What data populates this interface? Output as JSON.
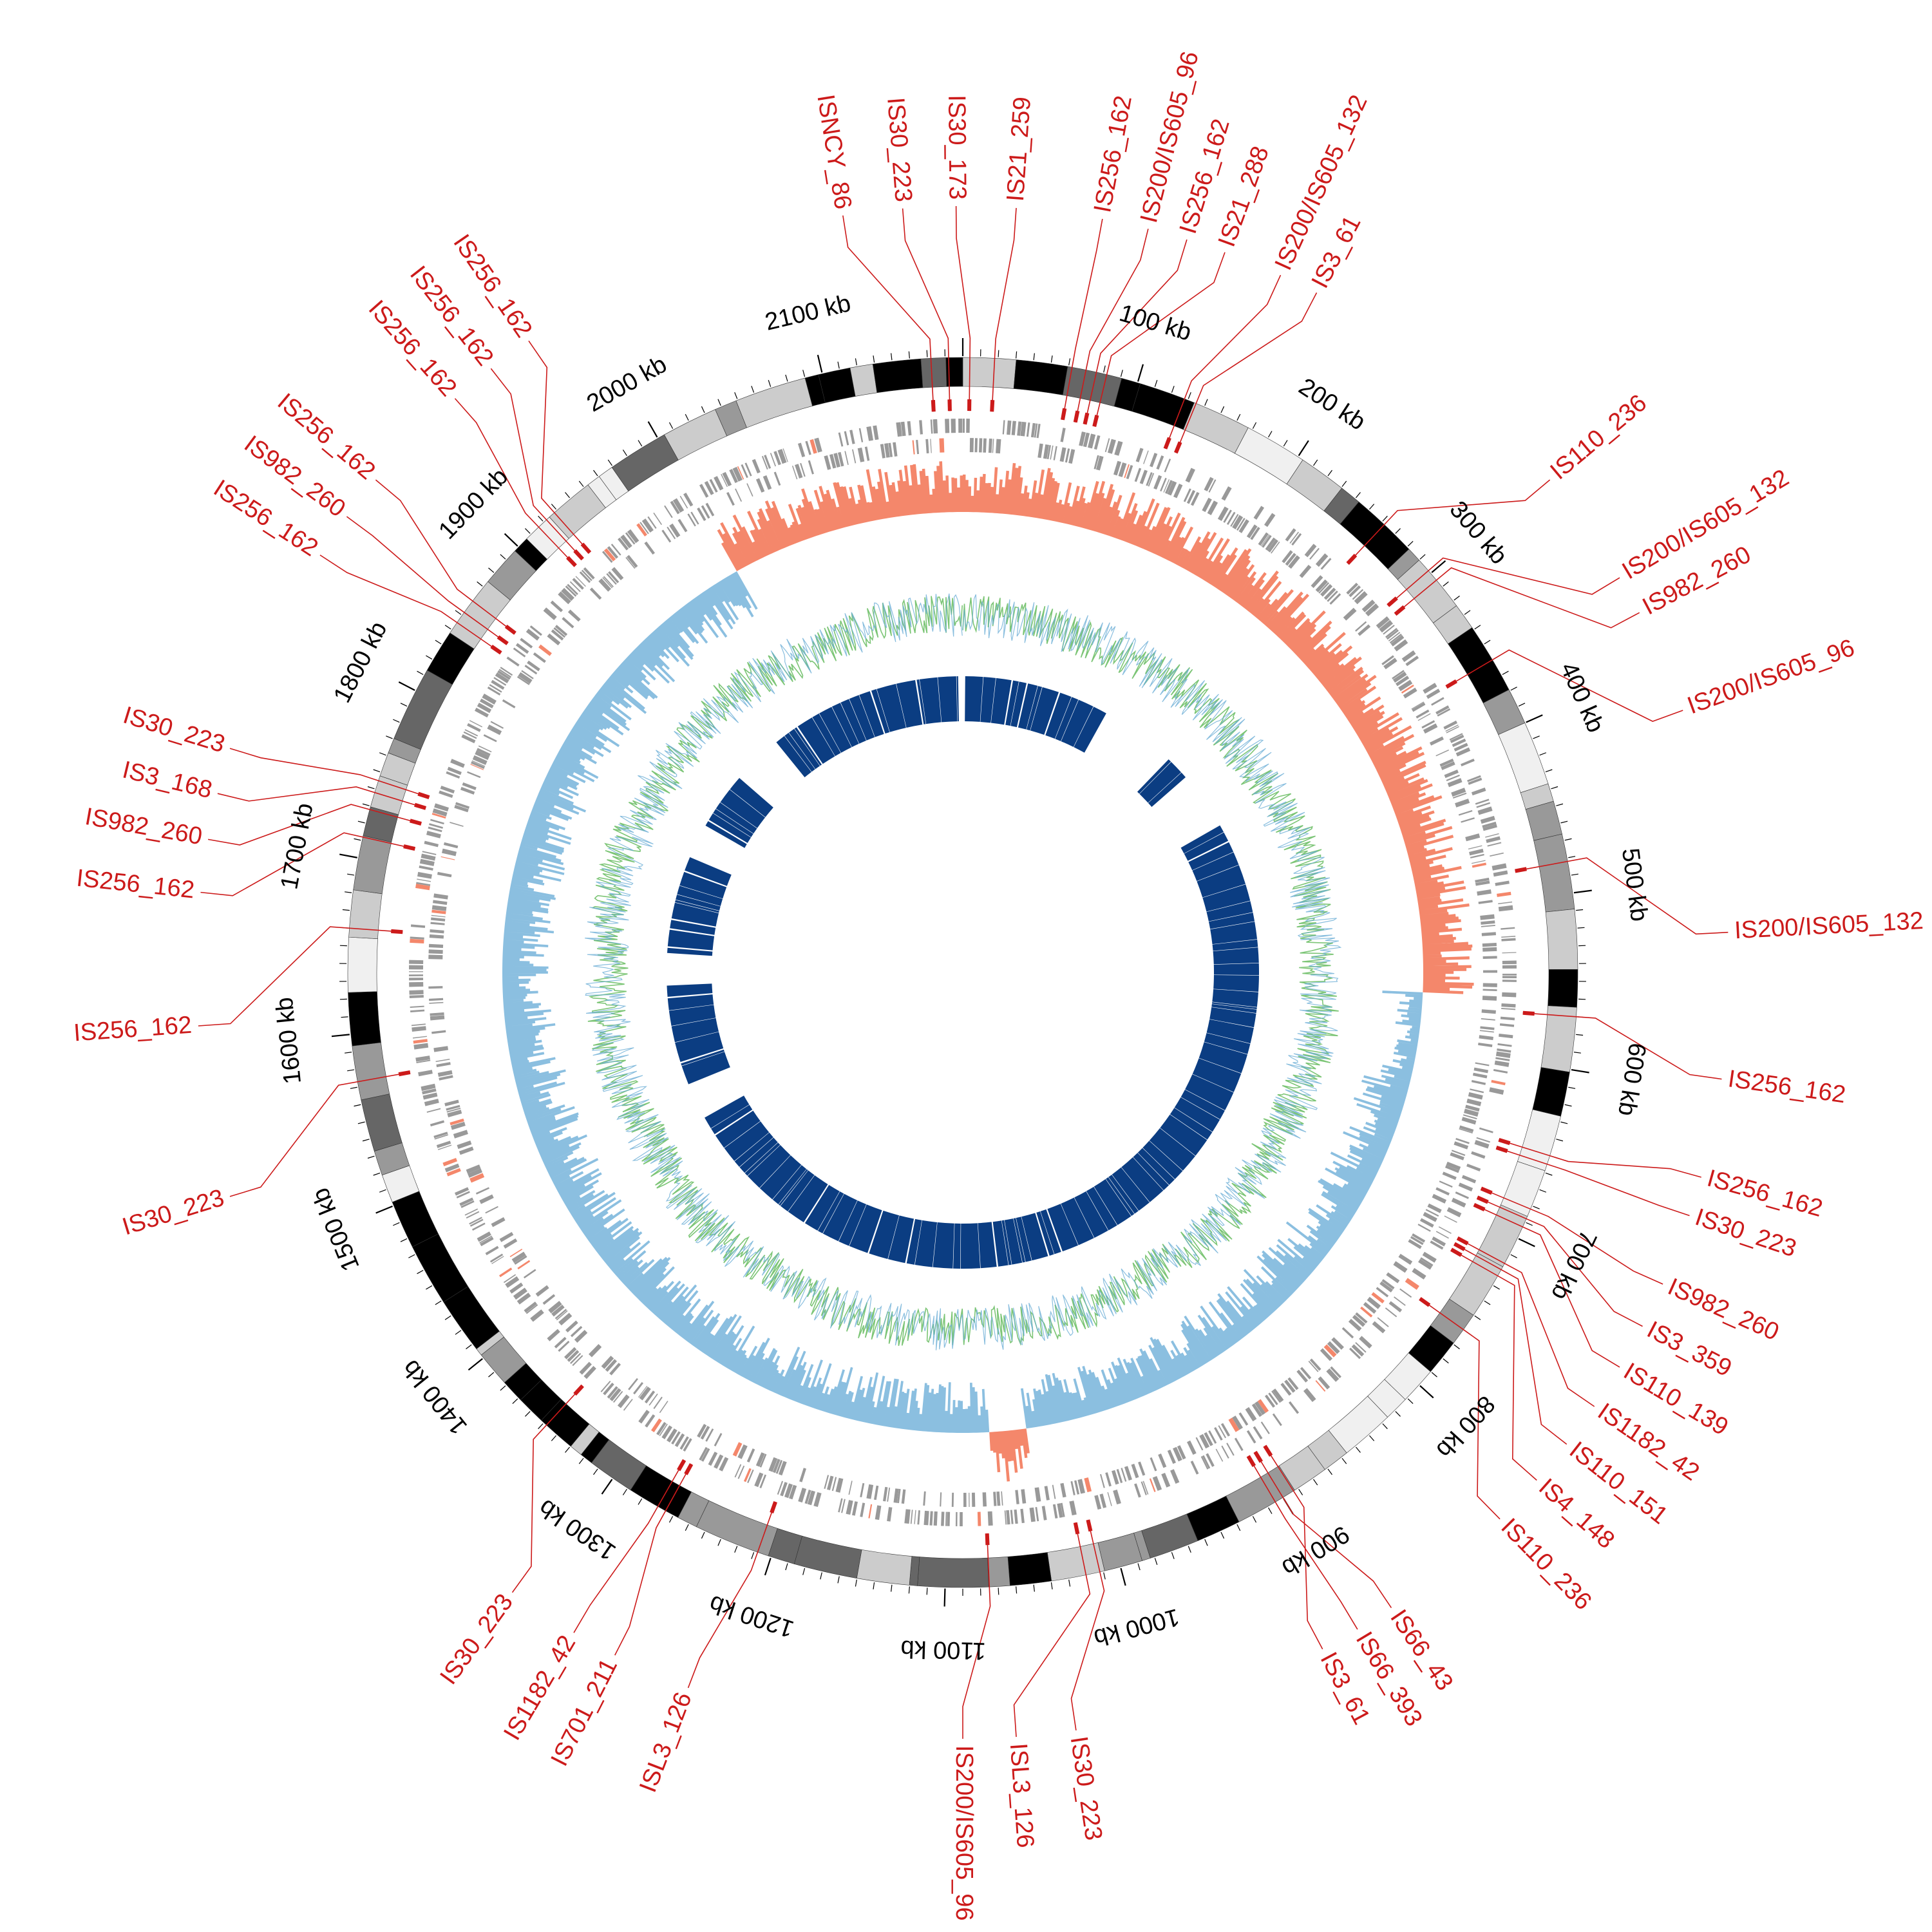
{
  "genome": {
    "size_kb": 2180,
    "start_angle_deg": -90
  },
  "colors": {
    "label_red": "#cc1a1a",
    "karyotype_shades": [
      "#f0f0f0",
      "#cccccc",
      "#999999",
      "#666666",
      "#000000"
    ],
    "gene_grey": "#999999",
    "gc_skew_positive": "#f4876b",
    "gc_skew_negative": "#8bbfe0",
    "gc_content_green": "#7cc576",
    "gc_content_blue": "#6baed6",
    "homology_blue": "#0b3d82"
  },
  "tracks": [
    {
      "name": "karyotype / contig bands"
    },
    {
      "name": "insertion sequence marks"
    },
    {
      "name": "genes forward / reverse"
    },
    {
      "name": "GC skew"
    },
    {
      "name": "GC content"
    },
    {
      "name": "homology blocks"
    }
  ],
  "kb_labels": [
    "100 kb",
    "200 kb",
    "300 kb",
    "400 kb",
    "500 kb",
    "600 kb",
    "700 kb",
    "800 kb",
    "900 kb",
    "1000 kb",
    "1100 kb",
    "1200 kb",
    "1300 kb",
    "1400 kb",
    "1500 kb",
    "1600 kb",
    "1700 kb",
    "1800 kb",
    "1900 kb",
    "2000 kb",
    "2100 kb"
  ],
  "kb_positions": [
    100,
    200,
    300,
    400,
    500,
    600,
    700,
    800,
    900,
    1000,
    1100,
    1200,
    1300,
    1400,
    1500,
    1600,
    1700,
    1800,
    1900,
    2000,
    2100
  ],
  "is_elements": [
    {
      "label": "ISNCY_86",
      "pos": 2162,
      "label_angle": -99.0
    },
    {
      "label": "IS30_223",
      "pos": 2172,
      "label_angle": -94.5
    },
    {
      "label": "IS30_173",
      "pos": 4,
      "label_angle": -90.5
    },
    {
      "label": "IS21_259",
      "pos": 18,
      "label_angle": -86.0
    },
    {
      "label": "IS256_162",
      "pos": 62,
      "label_angle": -79.5
    },
    {
      "label": "IS200/IS605_96",
      "pos": 70,
      "label_angle": -76.0
    },
    {
      "label": "IS256_162",
      "pos": 76,
      "label_angle": -73.0
    },
    {
      "label": "IS21_288",
      "pos": 82,
      "label_angle": -70.0
    },
    {
      "label": "IS200/IS605_132",
      "pos": 128,
      "label_angle": -65.5
    },
    {
      "label": "IS3_61",
      "pos": 135,
      "label_angle": -62.5
    },
    {
      "label": "IS110_236",
      "pos": 262,
      "label_angle": -40.0
    },
    {
      "label": "IS200/IS605_132",
      "pos": 298,
      "label_angle": -31.0
    },
    {
      "label": "IS982_260",
      "pos": 305,
      "label_angle": -28.0
    },
    {
      "label": "IS200/IS605_96",
      "pos": 360,
      "label_angle": -20.0
    },
    {
      "label": "IS200/IS605_132",
      "pos": 482,
      "label_angle": -3.0
    },
    {
      "label": "IS256_162",
      "pos": 570,
      "label_angle": 8.0
    },
    {
      "label": "IS256_162",
      "pos": 650,
      "label_angle": 15.5
    },
    {
      "label": "IS30_223",
      "pos": 655,
      "label_angle": 18.5
    },
    {
      "label": "IS982_260",
      "pos": 682,
      "label_angle": 24.0
    },
    {
      "label": "IS3_359",
      "pos": 688,
      "label_angle": 27.5
    },
    {
      "label": "IS110_139",
      "pos": 693,
      "label_angle": 31.0
    },
    {
      "label": "IS1182_42",
      "pos": 716,
      "label_angle": 34.5
    },
    {
      "label": "IS110_151",
      "pos": 720,
      "label_angle": 38.0
    },
    {
      "label": "IS4_148",
      "pos": 724,
      "label_angle": 41.5
    },
    {
      "label": "IS110_236",
      "pos": 760,
      "label_angle": 45.5
    },
    {
      "label": "IS66_43",
      "pos": 900,
      "label_angle": 56.0
    },
    {
      "label": "IS66_393",
      "pos": 905,
      "label_angle": 59.0
    },
    {
      "label": "IS3_61",
      "pos": 893,
      "label_angle": 62.0
    },
    {
      "label": "IS30_223",
      "pos": 1012,
      "label_angle": 81.5
    },
    {
      "label": "ISL3_126",
      "pos": 1020,
      "label_angle": 86.0
    },
    {
      "label": "IS200/IS605_96",
      "pos": 1075,
      "label_angle": 90.0
    },
    {
      "label": "ISL3_126",
      "pos": 1208,
      "label_angle": 111.0
    },
    {
      "label": "IS701_211",
      "pos": 1265,
      "label_angle": 117.0
    },
    {
      "label": "IS1182_42",
      "pos": 1270,
      "label_angle": 120.5
    },
    {
      "label": "IS30_223",
      "pos": 1348,
      "label_angle": 126.0
    },
    {
      "label": "IS30_223",
      "pos": 1573,
      "label_angle": 163.0
    },
    {
      "label": "IS256_162",
      "pos": 1660,
      "label_angle": 176.0
    },
    {
      "label": "IS256_162",
      "pos": 1712,
      "label_angle": -174.0
    },
    {
      "label": "IS982_260",
      "pos": 1728,
      "label_angle": -170.0
    },
    {
      "label": "IS3_168",
      "pos": 1738,
      "label_angle": -166.5
    },
    {
      "label": "IS30_223",
      "pos": 1745,
      "label_angle": -163.0
    },
    {
      "label": "IS256_162",
      "pos": 1845,
      "label_angle": -147.0
    },
    {
      "label": "IS982_260",
      "pos": 1852,
      "label_angle": -143.5
    },
    {
      "label": "IS256_162",
      "pos": 1860,
      "label_angle": -140.0
    },
    {
      "label": "IS256_162",
      "pos": 1916,
      "label_angle": -131.5
    },
    {
      "label": "IS256_162",
      "pos": 1922,
      "label_angle": -128.0
    },
    {
      "label": "IS256_162",
      "pos": 1928,
      "label_angle": -124.5
    }
  ]
}
